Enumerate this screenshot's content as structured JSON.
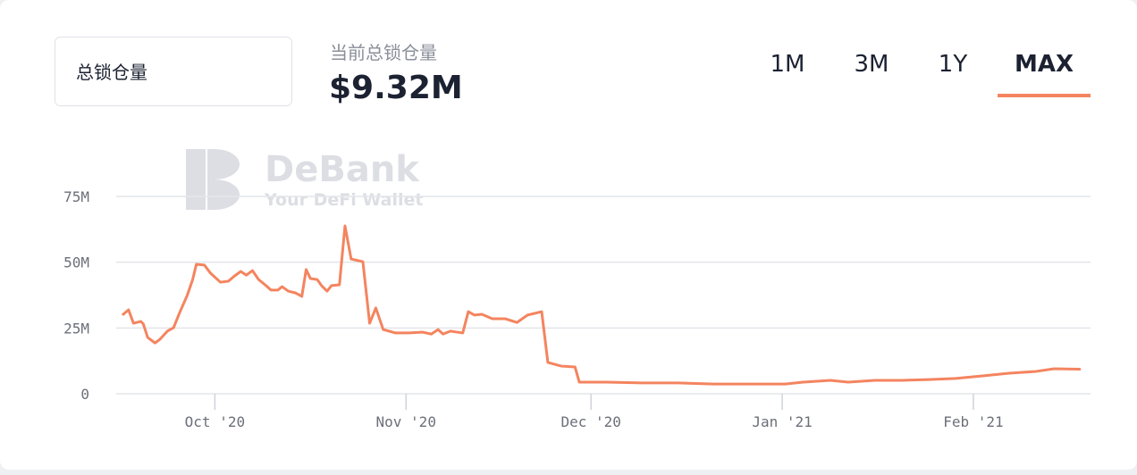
{
  "selector": {
    "label": "总锁仓量"
  },
  "summary": {
    "label": "当前总锁仓量",
    "value": "$9.32M"
  },
  "ranges": {
    "options": [
      "1M",
      "3M",
      "1Y",
      "MAX"
    ],
    "active": 3
  },
  "watermark": {
    "brand": "DeBank",
    "tagline": "Your DeFi Wallet"
  },
  "chart_data": {
    "type": "line",
    "x": [
      15,
      16,
      16.8,
      18,
      18.4,
      19.1,
      20.3,
      21.1,
      22.3,
      23.3,
      24.3,
      25.5,
      26.4,
      27,
      28.3,
      29.3,
      30.9,
      32.2,
      33.2,
      34.2,
      35.1,
      36.1,
      37.1,
      38.3,
      39.1,
      40.2,
      40.9,
      41.9,
      43.1,
      44.1,
      44.8,
      45.5,
      46.6,
      47.3,
      48.2,
      48.9,
      50.2,
      51.1,
      52.1,
      54,
      55.1,
      56.1,
      57.3,
      59.3,
      61.5,
      63.7,
      65.1,
      66.2,
      67,
      68.2,
      70.2,
      71.1,
      72.1,
      73.3,
      75,
      77.1,
      79,
      80.7,
      83,
      84,
      86.2,
      88.4,
      89.1,
      93.5,
      99.3,
      105.1,
      110.9,
      116.7,
      122.5,
      125.4,
      129.8,
      132.7,
      137,
      141.4,
      145.7,
      150.1,
      154.5,
      158.8,
      163.2,
      166.1,
      170.4
    ],
    "series": [
      {
        "name": "总锁仓量",
        "color": "#f4845f",
        "values": [
          29900000,
          31900000,
          26800000,
          27500000,
          26500000,
          21400000,
          19300000,
          20700000,
          23800000,
          25100000,
          30900000,
          37300000,
          43400000,
          49200000,
          48900000,
          45800000,
          42400000,
          42800000,
          44800000,
          46500000,
          45100000,
          46800000,
          43400000,
          41100000,
          39400000,
          39400000,
          40700000,
          39000000,
          38300000,
          37000000,
          47200000,
          43800000,
          43400000,
          41100000,
          39000000,
          41100000,
          41400000,
          63800000,
          51200000,
          50200000,
          26800000,
          32600000,
          24400000,
          23100000,
          23100000,
          23400000,
          22700000,
          24400000,
          22700000,
          23800000,
          23100000,
          31200000,
          29900000,
          30200000,
          28500000,
          28500000,
          27100000,
          29900000,
          31200000,
          11900000,
          10500000,
          10200000,
          4400000,
          4400000,
          4100000,
          4100000,
          3700000,
          3700000,
          3700000,
          4400000,
          5100000,
          4400000,
          5100000,
          5100000,
          5400000,
          5800000,
          6800000,
          7800000,
          8500000,
          9500000,
          9320000
        ]
      }
    ],
    "xlim": [
      14,
      172
    ],
    "xticks": [
      {
        "value": 30,
        "label": "Oct '20"
      },
      {
        "value": 61,
        "label": "Nov '20"
      },
      {
        "value": 91,
        "label": "Dec '20"
      },
      {
        "value": 122,
        "label": "Jan '21"
      },
      {
        "value": 153,
        "label": "Feb '21"
      }
    ],
    "ylim": [
      0,
      75000000
    ],
    "yticks": [
      {
        "value": 0,
        "label": "0"
      },
      {
        "value": 25000000,
        "label": "25M"
      },
      {
        "value": 50000000,
        "label": "50M"
      },
      {
        "value": 75000000,
        "label": "75M"
      }
    ],
    "grid": true
  }
}
